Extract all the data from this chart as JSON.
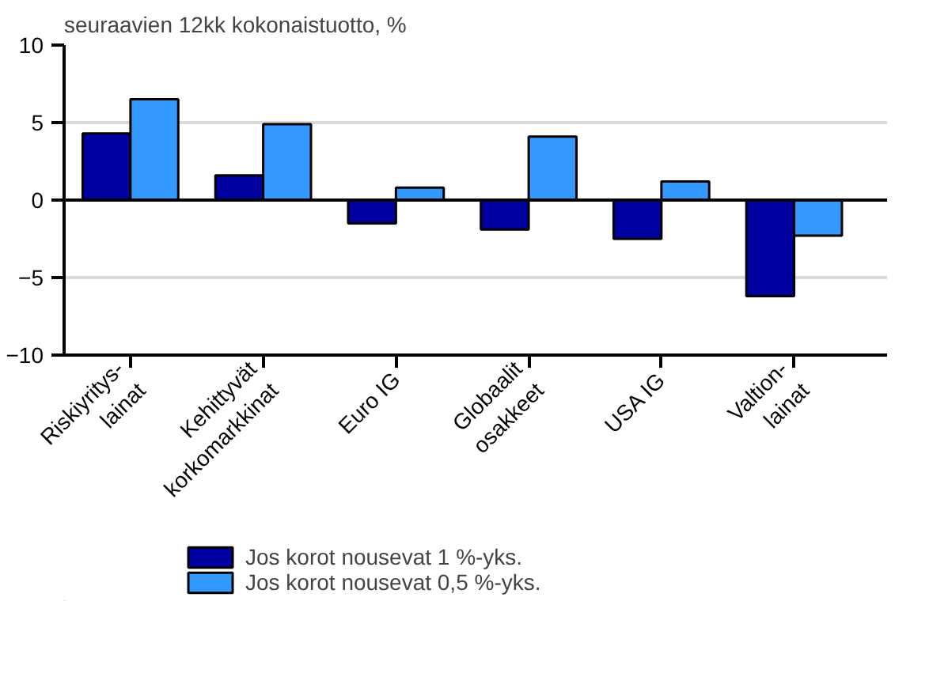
{
  "chart_data": {
    "type": "bar",
    "title": "seuraavien 12kk kokonaistuotto, %",
    "categories": [
      "Riskiyritys-\nlainat",
      "Kehittyvät\nkorkomarkkinat",
      "Euro IG",
      "Globaalit\nosakkeet",
      "USA IG",
      "Valtion-\nlainat"
    ],
    "series": [
      {
        "name": "Jos korot nousevat 1 %-yks.",
        "color": "#0000a0",
        "values": [
          4.3,
          1.6,
          -1.5,
          -1.9,
          -2.5,
          -6.2
        ]
      },
      {
        "name": "Jos korot nousevat 0,5 %-yks.",
        "color": "#3399ff",
        "values": [
          6.5,
          4.9,
          0.8,
          4.1,
          1.2,
          -2.3
        ]
      }
    ],
    "ylim": [
      -10,
      10
    ],
    "yticks": [
      -10,
      -5,
      0,
      5,
      10
    ],
    "grid": "y",
    "legend": "bottom left",
    "ref_lines": [
      {
        "axis": "y",
        "value": 0
      }
    ]
  }
}
